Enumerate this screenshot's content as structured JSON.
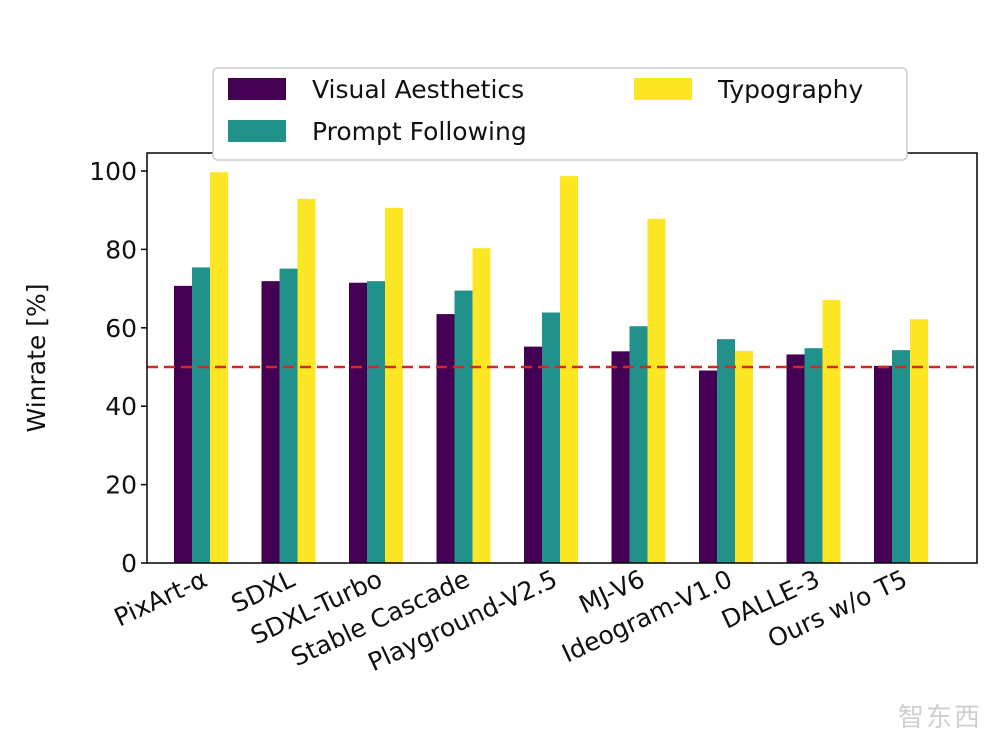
{
  "chart_data": {
    "type": "bar",
    "title": "",
    "xlabel": "",
    "ylabel": "Winrate [%]",
    "ylim": [
      0,
      104
    ],
    "yticks": [
      0,
      20,
      40,
      60,
      80,
      100
    ],
    "categories": [
      "PixArt-α",
      "SDXL",
      "SDXL-Turbo",
      "Stable Cascade",
      "Playground-V2.5",
      "MJ-V6",
      "Ideogram-V1.0",
      "DALLE-3",
      "Ours w/o T5"
    ],
    "series": [
      {
        "name": "Visual Aesthetics",
        "color": "#440154",
        "values": [
          70.7,
          71.9,
          71.5,
          63.5,
          55.2,
          54.0,
          49.1,
          53.2,
          50.3
        ]
      },
      {
        "name": "Prompt Following",
        "color": "#21918c",
        "values": [
          75.4,
          75.1,
          71.9,
          69.5,
          63.9,
          60.4,
          57.1,
          54.8,
          54.3
        ]
      },
      {
        "name": "Typography",
        "color": "#fde725",
        "values": [
          99.7,
          92.9,
          90.6,
          80.3,
          98.7,
          87.8,
          54.1,
          67.1,
          62.2
        ]
      }
    ],
    "reference_line": {
      "value": 50,
      "color": "#d62728",
      "style": "dashed"
    },
    "legend": {
      "placement": "top",
      "columns": 2
    },
    "grid": false
  },
  "watermark": "智东西"
}
